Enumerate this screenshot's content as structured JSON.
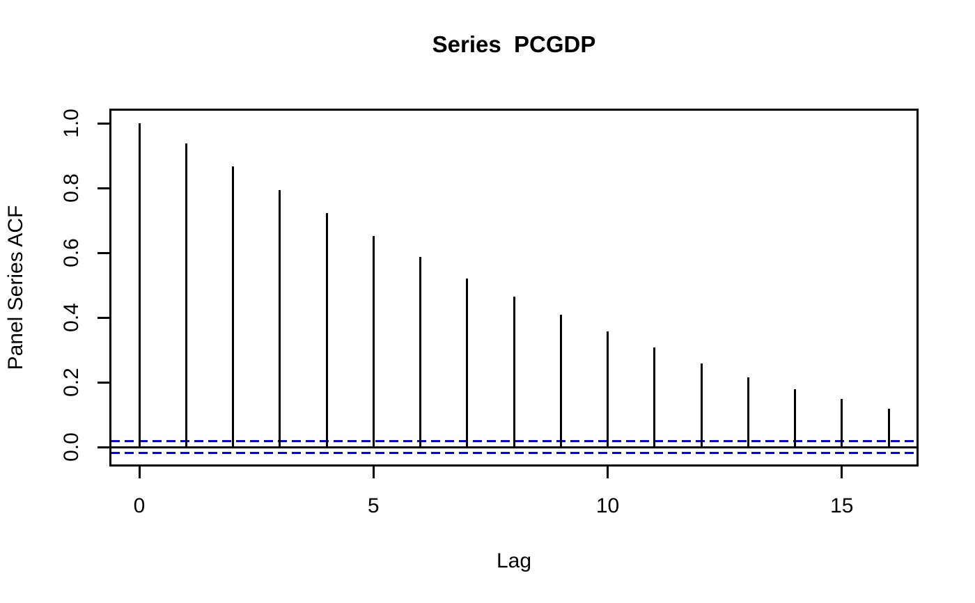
{
  "chart_data": {
    "type": "bar",
    "subtype": "acf-lollipop",
    "title": "Series  PCGDP",
    "xlabel": "Lag",
    "ylabel": "Panel Series ACF",
    "categories": [
      0,
      1,
      2,
      3,
      4,
      5,
      6,
      7,
      8,
      9,
      10,
      11,
      12,
      13,
      14,
      15,
      16
    ],
    "values": [
      1.0,
      0.938,
      0.867,
      0.794,
      0.723,
      0.652,
      0.588,
      0.521,
      0.464,
      0.408,
      0.356,
      0.307,
      0.258,
      0.215,
      0.178,
      0.148,
      0.118
    ],
    "conf_band": {
      "value": 0.019,
      "style": "dashed",
      "color": "#0000ff"
    },
    "x_ticks": {
      "positions": [
        0,
        5,
        10,
        15
      ],
      "labels": [
        "0",
        "5",
        "10",
        "15"
      ]
    },
    "y_ticks": {
      "values": [
        0.0,
        0.2,
        0.4,
        0.6,
        0.8,
        1.0
      ],
      "labels": [
        "0.0",
        "0.2",
        "0.4",
        "0.6",
        "0.8",
        "1.0"
      ]
    },
    "xlim": [
      -0.64,
      16.64
    ],
    "ylim": [
      -0.06,
      1.045
    ],
    "grid": false,
    "legend": "none",
    "colors": {
      "bar": "#000000",
      "zero_line": "#000000",
      "conf_band": "#0000ff",
      "box": "#000000",
      "background": "#ffffff",
      "text": "#000000"
    }
  }
}
